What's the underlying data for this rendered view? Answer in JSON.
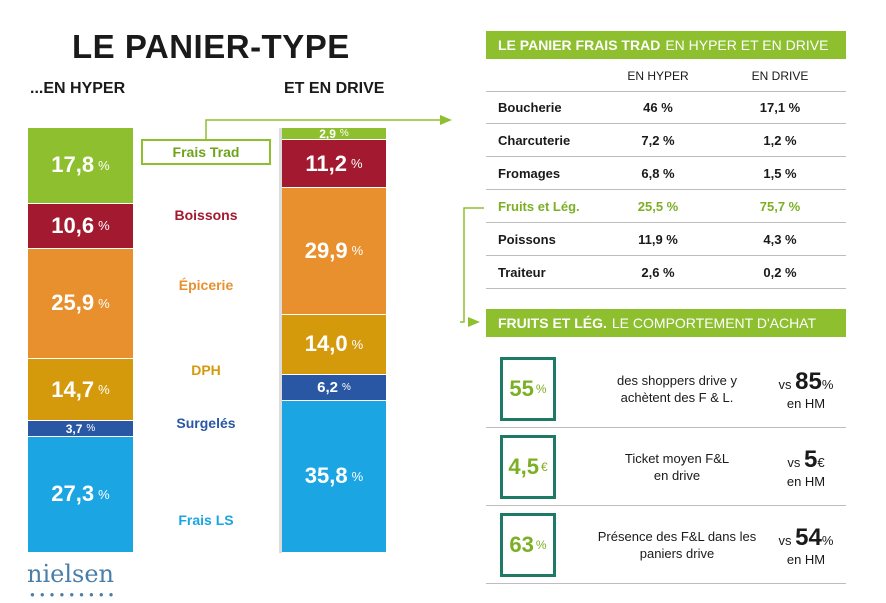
{
  "title": "LE PANIER-TYPE",
  "headers": {
    "hyper": "...EN HYPER",
    "drive": "ET EN DRIVE"
  },
  "brand": "nielsen",
  "chart_data": {
    "type": "bar",
    "stacked": true,
    "categories": [
      "...EN HYPER",
      "ET EN DRIVE"
    ],
    "series": [
      {
        "name": "Frais Trad",
        "values": [
          17.8,
          2.9
        ],
        "color": "#8dbf2e"
      },
      {
        "name": "Boissons",
        "values": [
          10.6,
          11.2
        ],
        "color": "#a3192f"
      },
      {
        "name": "Épicerie",
        "values": [
          25.9,
          29.9
        ],
        "color": "#e8902e"
      },
      {
        "name": "DPH",
        "values": [
          14.7,
          14.0
        ],
        "color": "#d49a0c"
      },
      {
        "name": "Surgelés",
        "values": [
          3.7,
          6.2
        ],
        "color": "#2a57a3"
      },
      {
        "name": "Frais LS",
        "values": [
          27.3,
          35.8
        ],
        "color": "#1ba5e2"
      }
    ],
    "value_labels": [
      [
        "17,8",
        "10,6",
        "25,9",
        "14,7",
        "3,7",
        "27,3"
      ],
      [
        "2,9",
        "11,2",
        "29,9",
        "14,0",
        "6,2",
        "35,8"
      ]
    ],
    "unit": "%",
    "legend_colors": [
      "#6ea31c",
      "#a3192f",
      "#e8902e",
      "#d49a0c",
      "#2a57a3",
      "#1ba5e2"
    ]
  },
  "table": {
    "title_bold": "LE PANIER FRAIS TRAD",
    "title_rest": "EN HYPER ET EN DRIVE",
    "columns": [
      "EN HYPER",
      "EN DRIVE"
    ],
    "rows": [
      {
        "label": "Boucherie",
        "hyper": "46 %",
        "drive": "17,1 %"
      },
      {
        "label": "Charcuterie",
        "hyper": "7,2 %",
        "drive": "1,2 %"
      },
      {
        "label": "Fromages",
        "hyper": "6,8 %",
        "drive": "1,5 %"
      },
      {
        "label": "Fruits et Lég.",
        "hyper": "25,5 %",
        "drive": "75,7 %"
      },
      {
        "label": "Poissons",
        "hyper": "11,9 %",
        "drive": "4,3 %"
      },
      {
        "label": "Traiteur",
        "hyper": "2,6 %",
        "drive": "0,2 %"
      }
    ]
  },
  "behaviour": {
    "title_bold": "FRUITS ET LÉG.",
    "title_rest": "LE COMPORTEMENT D'ACHAT",
    "items": [
      {
        "value": "55",
        "unit": "%",
        "text1": "des shoppers drive y",
        "text2": "achètent des F & L.",
        "vs": "vs",
        "compare": "85",
        "compare_unit": "%",
        "ref": "en HM"
      },
      {
        "value": "4,5",
        "unit": "€",
        "text1": "Ticket moyen F&L",
        "text2": "en drive",
        "vs": "vs",
        "compare": "5",
        "compare_unit": "€",
        "ref": "en HM"
      },
      {
        "value": "63",
        "unit": "%",
        "text1": "Présence des F&L dans les",
        "text2": "paniers drive",
        "vs": "vs",
        "compare": "54",
        "compare_unit": "%",
        "ref": "en HM"
      }
    ]
  }
}
